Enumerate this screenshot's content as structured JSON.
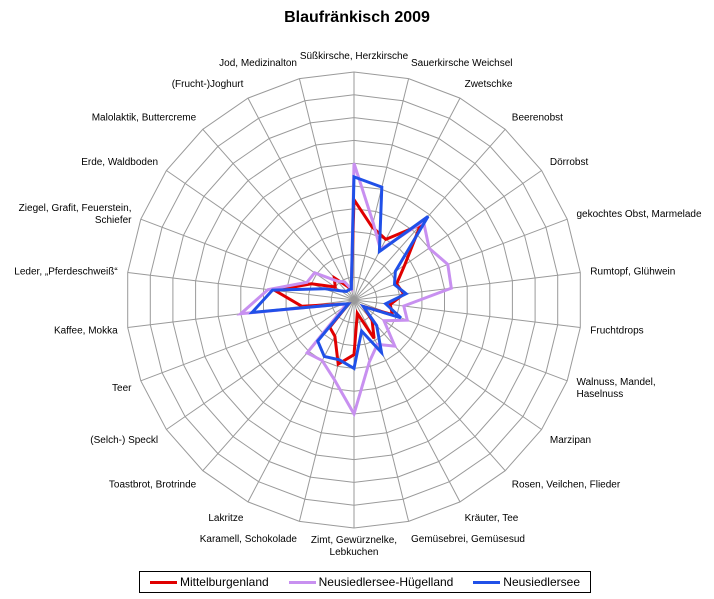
{
  "chart_data": {
    "type": "radar",
    "title": "Blaufränkisch 2009",
    "categories": [
      "Süßkirsche, Herzkirsche",
      "Sauerkirsche Weichsel",
      "Zwetschke",
      "Beerenobst",
      "Dörrobst",
      "gekochtes Obst, Marmelade",
      "Rumtopf, Glühwein",
      "Fruchtdrops",
      "Walnuss, Mandel, Haselnuss",
      "Marzipan",
      "Rosen, Veilchen, Flieder",
      "Kräuter, Tee",
      "Gemüsebrei, Gemüsesud",
      "Zimt, Gewürznelke, Lebkuchen",
      "Karamell, Schokolade",
      "Lakritze",
      "Toastbrot, Brotrinde",
      "(Selch-) Speckl",
      "Teer",
      "Kaffee, Mokka",
      "Leder, „Pferdeschweiß“",
      "Ziegel, Grafit, Feuerstein, Schiefer",
      "Erde, Waldboden",
      "Malolaktik, Buttercreme",
      "(Frucht-)Joghurt",
      "Jod, Medizinalton"
    ],
    "rmax": 10,
    "rings": 10,
    "series": [
      {
        "name": "Mittelburgenland",
        "color": "#e00000",
        "values": [
          4.4,
          3.3,
          3.0,
          4.4,
          2.7,
          2.0,
          2.2,
          1.6,
          1.8,
          0.5,
          1.2,
          1.9,
          0.6,
          2.4,
          2.9,
          1.8,
          1.6,
          0.3,
          0.5,
          2.3,
          3.5,
          2.0,
          1.0,
          1.3,
          0.7,
          0.5
        ]
      },
      {
        "name": "Neusiedlersee-Hügelland",
        "color": "#c890f0",
        "values": [
          6.0,
          3.5,
          2.5,
          4.6,
          4.0,
          4.4,
          4.3,
          2.2,
          2.5,
          1.6,
          2.7,
          2.2,
          2.8,
          5.0,
          3.6,
          3.0,
          3.1,
          0.5,
          0.5,
          5.0,
          3.8,
          2.2,
          2.1,
          1.1,
          0.9,
          0.5
        ]
      },
      {
        "name": "Neusiedlersee",
        "color": "#2050e8",
        "values": [
          5.4,
          5.1,
          2.4,
          4.9,
          2.2,
          1.9,
          2.3,
          1.4,
          2.2,
          0.5,
          1.5,
          2.6,
          1.4,
          3.0,
          2.7,
          2.8,
          2.4,
          0.3,
          0.5,
          4.5,
          3.6,
          1.4,
          0.7,
          0.5,
          0.5,
          0.5
        ]
      }
    ]
  }
}
